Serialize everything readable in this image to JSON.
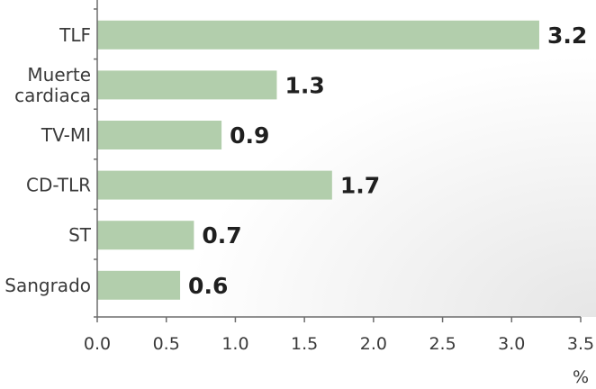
{
  "chart_data": {
    "type": "bar",
    "orientation": "horizontal",
    "categories": [
      "TLF",
      "Muerte cardiaca",
      "TV-MI",
      "CD-TLR",
      "ST",
      "Sangrado"
    ],
    "category_label_lines": [
      [
        "TLF"
      ],
      [
        "Muerte",
        "cardiaca"
      ],
      [
        "TV-MI"
      ],
      [
        "CD-TLR"
      ],
      [
        "ST"
      ],
      [
        "Sangrado"
      ]
    ],
    "values": [
      3.2,
      1.3,
      0.9,
      1.7,
      0.7,
      0.6
    ],
    "value_labels": [
      "3.2",
      "1.3",
      "0.9",
      "1.7",
      "0.7",
      "0.6"
    ],
    "xlim": [
      0,
      3.5
    ],
    "x_ticks": [
      0.0,
      0.5,
      1.0,
      1.5,
      2.0,
      2.5,
      3.0,
      3.5
    ],
    "x_tick_labels": [
      "0.0",
      "0.5",
      "1.0",
      "1.5",
      "2.0",
      "2.5",
      "3.0",
      "3.5"
    ],
    "x_unit": "%",
    "title": "",
    "grid": false,
    "bar_color": "#b2ceac",
    "background_gradient": [
      "#ffffff",
      "#e6e6e6"
    ]
  }
}
